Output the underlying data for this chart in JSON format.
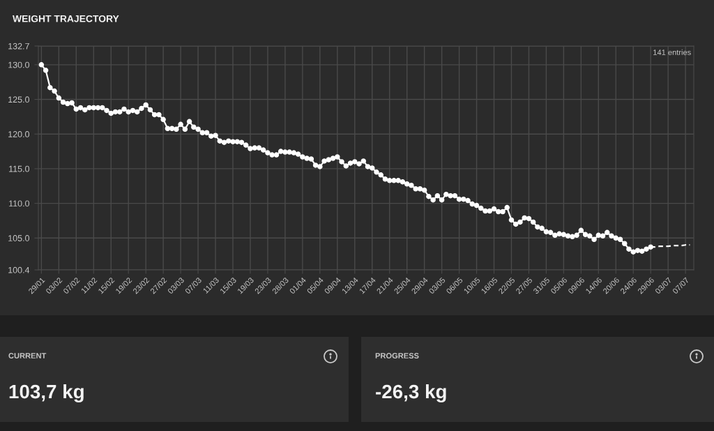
{
  "chart_data": [
    {
      "type": "line",
      "title": "WEIGHT TRAJECTORY",
      "annotations": [
        "141 entries"
      ],
      "categories": [
        "29/01",
        null,
        null,
        null,
        "03/02",
        null,
        null,
        null,
        "07/02",
        null,
        null,
        null,
        "11/02",
        null,
        null,
        null,
        "15/02",
        null,
        null,
        null,
        "19/02",
        null,
        null,
        null,
        "23/02",
        null,
        null,
        null,
        "27/02",
        null,
        null,
        null,
        "03/03",
        null,
        null,
        null,
        "07/03",
        null,
        null,
        null,
        "11/03",
        null,
        null,
        null,
        "15/03",
        null,
        null,
        null,
        "19/03",
        null,
        null,
        null,
        "23/03",
        null,
        null,
        null,
        "28/03",
        null,
        null,
        null,
        "01/04",
        null,
        null,
        null,
        "05/04",
        null,
        null,
        null,
        "09/04",
        null,
        null,
        null,
        "13/04",
        null,
        null,
        null,
        "17/04",
        null,
        null,
        null,
        "21/04",
        null,
        null,
        null,
        "25/04",
        null,
        null,
        null,
        "29/04",
        null,
        null,
        null,
        "03/05",
        null,
        null,
        null,
        "06/05",
        null,
        null,
        null,
        "10/05",
        null,
        null,
        null,
        "16/05",
        null,
        null,
        null,
        "22/05",
        null,
        null,
        null,
        "27/05",
        null,
        null,
        null,
        "31/05",
        null,
        null,
        null,
        "05/06",
        null,
        null,
        null,
        "09/06",
        null,
        null,
        null,
        "14/06",
        null,
        null,
        null,
        "20/06",
        null,
        null,
        null,
        "24/06",
        null,
        null,
        null,
        "29/06",
        null,
        null,
        null,
        "03/07",
        null,
        null,
        null,
        "07/07",
        null
      ],
      "series": [
        {
          "color": "#ffffff",
          "values": [
            130.0,
            129.2,
            126.7,
            126.2,
            125.2,
            124.6,
            124.4,
            124.5,
            123.6,
            123.8,
            123.5,
            123.8,
            123.8,
            123.8,
            123.8,
            123.4,
            123.0,
            123.2,
            123.2,
            123.6,
            123.2,
            123.4,
            123.2,
            123.7,
            124.2,
            123.5,
            122.8,
            122.8,
            122.1,
            120.8,
            120.8,
            120.7,
            121.4,
            120.7,
            121.8,
            121.0,
            120.7,
            120.2,
            120.2,
            119.7,
            119.8,
            119.0,
            118.8,
            119.0,
            118.9,
            118.9,
            118.8,
            118.4,
            117.9,
            118.0,
            118.0,
            117.7,
            117.3,
            117.0,
            117.0,
            117.5,
            117.4,
            117.4,
            117.3,
            117.1,
            116.7,
            116.5,
            116.4,
            115.5,
            115.3,
            116.1,
            116.3,
            116.5,
            116.7,
            116.0,
            115.4,
            115.8,
            116.0,
            115.7,
            116.1,
            115.3,
            115.1,
            114.5,
            114.1,
            113.5,
            113.3,
            113.3,
            113.3,
            113.1,
            112.8,
            112.6,
            112.1,
            112.1,
            111.9,
            111.0,
            110.5,
            111.1,
            110.5,
            111.3,
            111.1,
            111.1,
            110.6,
            110.6,
            110.4,
            109.9,
            109.7,
            109.3,
            108.9,
            108.9,
            109.2,
            108.8,
            108.8,
            109.4,
            107.6,
            107.0,
            107.3,
            107.9,
            107.8,
            107.3,
            106.6,
            106.4,
            105.9,
            105.8,
            105.4,
            105.6,
            105.5,
            105.3,
            105.2,
            105.4,
            106.1,
            105.5,
            105.3,
            104.8,
            105.4,
            105.3,
            105.8,
            105.3,
            105.0,
            104.8,
            104.2,
            103.4,
            103.0,
            103.2,
            103.1,
            103.4,
            103.7,
            null,
            null,
            null,
            null,
            null,
            null,
            null,
            null,
            null
          ]
        },
        {
          "color": "#ffffff",
          "marker": "none",
          "line_style": "dashed",
          "values": [
            null,
            null,
            null,
            null,
            null,
            null,
            null,
            null,
            null,
            null,
            null,
            null,
            null,
            null,
            null,
            null,
            null,
            null,
            null,
            null,
            null,
            null,
            null,
            null,
            null,
            null,
            null,
            null,
            null,
            null,
            null,
            null,
            null,
            null,
            null,
            null,
            null,
            null,
            null,
            null,
            null,
            null,
            null,
            null,
            null,
            null,
            null,
            null,
            null,
            null,
            null,
            null,
            null,
            null,
            null,
            null,
            null,
            null,
            null,
            null,
            null,
            null,
            null,
            null,
            null,
            null,
            null,
            null,
            null,
            null,
            null,
            null,
            null,
            null,
            null,
            null,
            null,
            null,
            null,
            null,
            null,
            null,
            null,
            null,
            null,
            null,
            null,
            null,
            null,
            null,
            null,
            null,
            null,
            null,
            null,
            null,
            null,
            null,
            null,
            null,
            null,
            null,
            null,
            null,
            null,
            null,
            null,
            null,
            null,
            null,
            null,
            null,
            null,
            null,
            null,
            null,
            null,
            null,
            null,
            null,
            null,
            null,
            null,
            null,
            null,
            null,
            null,
            null,
            null,
            null,
            null,
            null,
            null,
            null,
            null,
            null,
            null,
            null,
            null,
            null,
            103.7,
            103.7,
            103.8,
            103.8,
            103.8,
            103.9,
            103.9,
            103.9,
            104.0,
            104.0
          ]
        }
      ],
      "ylim": [
        100.4,
        132.7
      ],
      "yticks": [
        100.4,
        {
          "value": 105,
          "label": "105.0"
        },
        {
          "value": 110,
          "label": "110.0"
        },
        {
          "value": 115,
          "label": "115.0"
        },
        {
          "value": 120,
          "label": "120.0"
        },
        {
          "value": 125,
          "label": "125.0"
        },
        {
          "value": 130,
          "label": "130.0"
        },
        132.7
      ],
      "grid": true,
      "marker": "circle",
      "line_style": "solid"
    },
    {
      "type": "other",
      "title": "CURRENT",
      "annotations": [
        "103,7 kg"
      ]
    },
    {
      "type": "other",
      "title": "PROGRESS",
      "annotations": [
        "-26,3 kg"
      ]
    }
  ]
}
